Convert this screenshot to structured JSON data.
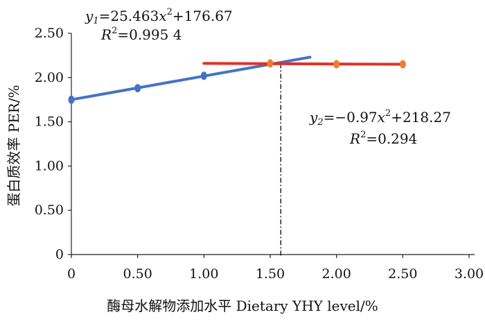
{
  "chart_data": {
    "type": "line",
    "xlabel": "酶母水解物添加水平 Dietary YHY level/%",
    "ylabel": "蛋白质效率 PER/%",
    "xlim": [
      0,
      3.0
    ],
    "ylim": [
      0,
      2.5
    ],
    "x_ticks": [
      "0",
      "0.50",
      "1.00",
      "1.50",
      "2.00",
      "2.50",
      "3.00"
    ],
    "y_ticks": [
      "0",
      "0.50",
      "1.00",
      "1.50",
      "2.00",
      "2.50"
    ],
    "grid": false,
    "series": [
      {
        "color": "#4472C4",
        "points": [
          {
            "x": 0,
            "y": 1.75
          },
          {
            "x": 0.5,
            "y": 1.88
          },
          {
            "x": 1.0,
            "y": 2.02
          }
        ],
        "trend_line": {
          "x": [
            0,
            1.8
          ],
          "y": [
            1.75,
            2.23
          ]
        }
      },
      {
        "color": "#ED7D31",
        "points": [
          {
            "x": 1.5,
            "y": 2.16
          },
          {
            "x": 2.0,
            "y": 2.15
          },
          {
            "x": 2.5,
            "y": 2.15
          }
        ],
        "trend_line": {
          "x": [
            1.0,
            2.5
          ],
          "y": [
            2.16,
            2.15
          ],
          "color": "#E03028"
        }
      }
    ],
    "breakpoint": {
      "x": 1.58,
      "y": 2.16
    },
    "annotations": [
      {
        "equation": "y1=25.463x2+176.67",
        "r2": "R2=0.995 4"
      },
      {
        "equation": "y2=−0.97x2+218.27",
        "r2": "R2=0.294"
      }
    ]
  }
}
